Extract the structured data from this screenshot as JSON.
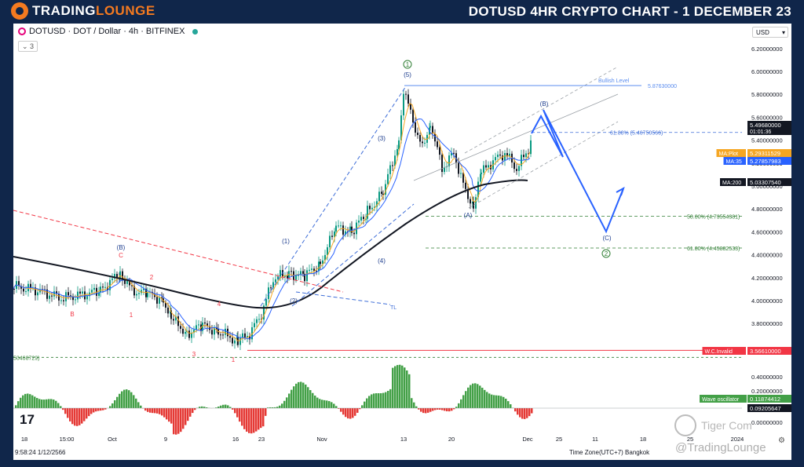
{
  "banner": {
    "logo_main": "TRADING",
    "logo_accent": "LOUNGE",
    "logo_icon": "tradinglounge-circle-logo",
    "headline": "DOTUSD 4HR CRYPTO CHART - 1 DECEMBER 23"
  },
  "chart_header": {
    "symbol_line": "DOTUSD · DOT / Dollar · 4h · BITFINEX",
    "collapse_count": "3",
    "currency_select": "USD",
    "live_status_color": "#26a69a"
  },
  "footer": {
    "tv_logo": "17",
    "timestamp": "9:58:24 1/12/2566",
    "timezone": "Time Zone(UTC+7) Bangkok",
    "watermark_tiger": "Tiger Com",
    "watermark_brand": "@TradingLounge",
    "settings_icon": "gear-icon"
  },
  "chart_data": {
    "type": "candlestick",
    "symbol": "DOTUSD",
    "timeframe": "4h",
    "exchange": "BITFINEX",
    "x_tick_labels": [
      "18",
      "15:00",
      "Oct",
      "9",
      "16",
      "23",
      "Nov",
      "13",
      "20",
      "Dec",
      "25",
      "11",
      "18",
      "25",
      "2024"
    ],
    "y_tick_labels": [
      "6.20000000",
      "6.00000000",
      "5.80000000",
      "5.60000000",
      "5.40000000",
      "5.20000000",
      "5.00000000",
      "4.80000000",
      "4.60000000",
      "4.40000000",
      "4.20000000",
      "4.00000000",
      "3.80000000"
    ],
    "ylim": [
      3.5,
      6.35
    ],
    "price_tags": [
      {
        "label": "5.49680000",
        "sub": "01:01:36",
        "color": "#131722",
        "text_color": "#ffffff"
      },
      {
        "label": "5.29311529",
        "tag": "MA:Plot",
        "color": "#f5a623",
        "text_color": "#ffffff"
      },
      {
        "label": "5.27857983",
        "tag": "MA:35",
        "color": "#2962ff",
        "text_color": "#ffffff"
      },
      {
        "label": "5.03307540",
        "tag": "MA:200",
        "color": "#131722",
        "text_color": "#ffffff"
      },
      {
        "label": "3.56610000",
        "tag": "W.C.Invalid",
        "color": "#f23645",
        "text_color": "#ffffff"
      }
    ],
    "levels": [
      {
        "label": "Bullish Level",
        "value_text": "5.87630000",
        "value": 5.8763,
        "color": "#5b8def"
      },
      {
        "label": "61.80% (5.46750566)",
        "value": 5.4675,
        "color": "#3d6dd8"
      },
      {
        "label": "50.00% (4.73554381)",
        "value": 4.7355,
        "color": "#2e7d32"
      },
      {
        "label": "61.80% (4.45882533)",
        "value": 4.4588,
        "color": "#2e7d32"
      },
      {
        "label": "W.C.Invalid",
        "value": 3.5661,
        "color": "#f23645"
      },
      {
        "label": "50468729)",
        "value": 3.5047,
        "color": "#2e7d32"
      }
    ],
    "wave_labels": [
      "(B)",
      "C",
      "B",
      "1",
      "2",
      "3",
      "4",
      "1",
      "(1)",
      "(2)",
      "(3)",
      "(4)",
      "(5)",
      "1",
      "(A)",
      "(B)",
      "(C)",
      "2"
    ],
    "channel_label": "TL",
    "oscillator": {
      "name": "Wave oscillator",
      "value_1": "0.11874412",
      "value_2": "0.09205647",
      "ticks": [
        "0.40000000",
        "0.20000000",
        "0.00000000"
      ],
      "positive_color": "#43a047",
      "negative_color": "#e53935"
    },
    "candle_up_color": "#089981",
    "candle_down_color": "#131722",
    "ma_fast_color": "#f5a623",
    "ma_mid_color": "#2962ff",
    "ma_slow_color": "#131722"
  }
}
